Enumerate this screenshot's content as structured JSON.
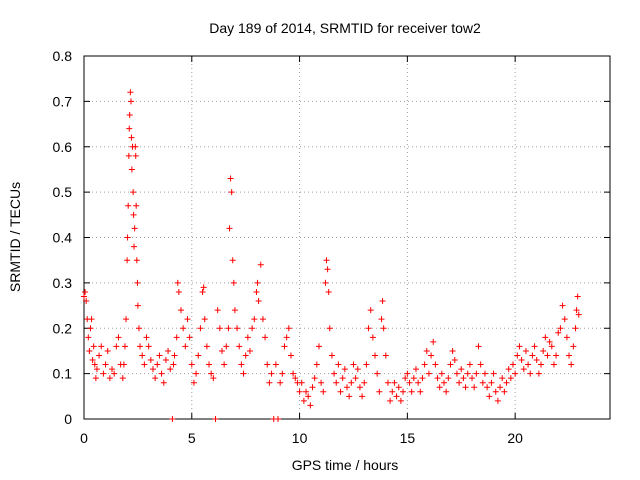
{
  "chart_data": {
    "type": "scatter",
    "title": "Day 189 of 2014, SRMTID for receiver tow2",
    "xlabel": "GPS time / hours",
    "ylabel": "SRMTID / TECUs",
    "xlim": [
      0,
      24.4
    ],
    "ylim": [
      0,
      0.8
    ],
    "xticks": [
      0,
      5,
      10,
      15,
      20
    ],
    "yticks": [
      0,
      0.1,
      0.2,
      0.3,
      0.4,
      0.5,
      0.6,
      0.7,
      0.8
    ],
    "xtick_labels": [
      "0",
      "5",
      "10",
      "15",
      "20"
    ],
    "ytick_labels": [
      "0",
      "0.1",
      "0.2",
      "0.3",
      "0.4",
      "0.5",
      "0.6",
      "0.7",
      "0.8"
    ],
    "grid": true,
    "marker": "+",
    "color": "#ff0000",
    "series": [
      {
        "name": "SRMTID",
        "points": [
          [
            0.0,
            0.27
          ],
          [
            0.05,
            0.28
          ],
          [
            0.1,
            0.26
          ],
          [
            0.15,
            0.22
          ],
          [
            0.2,
            0.18
          ],
          [
            0.25,
            0.15
          ],
          [
            0.3,
            0.2
          ],
          [
            0.35,
            0.22
          ],
          [
            0.4,
            0.13
          ],
          [
            0.45,
            0.16
          ],
          [
            0.5,
            0.12
          ],
          [
            0.55,
            0.09
          ],
          [
            0.6,
            0.11
          ],
          [
            0.7,
            0.14
          ],
          [
            0.8,
            0.16
          ],
          [
            0.9,
            0.1
          ],
          [
            1.0,
            0.12
          ],
          [
            1.1,
            0.15
          ],
          [
            1.2,
            0.09
          ],
          [
            1.3,
            0.11
          ],
          [
            1.4,
            0.1
          ],
          [
            1.5,
            0.16
          ],
          [
            1.6,
            0.18
          ],
          [
            1.7,
            0.12
          ],
          [
            1.8,
            0.09
          ],
          [
            1.85,
            0.12
          ],
          [
            1.9,
            0.16
          ],
          [
            1.95,
            0.22
          ],
          [
            2.0,
            0.35
          ],
          [
            2.02,
            0.4
          ],
          [
            2.05,
            0.47
          ],
          [
            2.08,
            0.58
          ],
          [
            2.1,
            0.64
          ],
          [
            2.12,
            0.67
          ],
          [
            2.15,
            0.72
          ],
          [
            2.18,
            0.7
          ],
          [
            2.2,
            0.62
          ],
          [
            2.22,
            0.55
          ],
          [
            2.25,
            0.6
          ],
          [
            2.28,
            0.5
          ],
          [
            2.3,
            0.45
          ],
          [
            2.32,
            0.38
          ],
          [
            2.35,
            0.42
          ],
          [
            2.38,
            0.6
          ],
          [
            2.4,
            0.58
          ],
          [
            2.42,
            0.47
          ],
          [
            2.45,
            0.35
          ],
          [
            2.48,
            0.3
          ],
          [
            2.5,
            0.25
          ],
          [
            2.55,
            0.2
          ],
          [
            2.6,
            0.16
          ],
          [
            2.7,
            0.14
          ],
          [
            2.8,
            0.12
          ],
          [
            2.9,
            0.18
          ],
          [
            3.0,
            0.16
          ],
          [
            3.1,
            0.13
          ],
          [
            3.2,
            0.11
          ],
          [
            3.3,
            0.09
          ],
          [
            3.4,
            0.12
          ],
          [
            3.5,
            0.14
          ],
          [
            3.6,
            0.1
          ],
          [
            3.7,
            0.08
          ],
          [
            3.8,
            0.13
          ],
          [
            3.9,
            0.15
          ],
          [
            4.0,
            0.11
          ],
          [
            4.1,
            0.0
          ],
          [
            4.15,
            0.12
          ],
          [
            4.2,
            0.14
          ],
          [
            4.3,
            0.18
          ],
          [
            4.35,
            0.3
          ],
          [
            4.4,
            0.28
          ],
          [
            4.5,
            0.24
          ],
          [
            4.6,
            0.2
          ],
          [
            4.7,
            0.16
          ],
          [
            4.8,
            0.22
          ],
          [
            4.9,
            0.18
          ],
          [
            5.0,
            0.12
          ],
          [
            5.1,
            0.08
          ],
          [
            5.2,
            0.1
          ],
          [
            5.3,
            0.14
          ],
          [
            5.4,
            0.2
          ],
          [
            5.5,
            0.28
          ],
          [
            5.55,
            0.29
          ],
          [
            5.6,
            0.22
          ],
          [
            5.7,
            0.16
          ],
          [
            5.8,
            0.12
          ],
          [
            5.9,
            0.1
          ],
          [
            6.0,
            0.09
          ],
          [
            6.1,
            0.0
          ],
          [
            6.2,
            0.24
          ],
          [
            6.3,
            0.2
          ],
          [
            6.4,
            0.15
          ],
          [
            6.5,
            0.12
          ],
          [
            6.6,
            0.16
          ],
          [
            6.7,
            0.2
          ],
          [
            6.75,
            0.42
          ],
          [
            6.8,
            0.53
          ],
          [
            6.85,
            0.5
          ],
          [
            6.9,
            0.35
          ],
          [
            6.95,
            0.3
          ],
          [
            7.0,
            0.24
          ],
          [
            7.1,
            0.2
          ],
          [
            7.2,
            0.16
          ],
          [
            7.3,
            0.12
          ],
          [
            7.4,
            0.1
          ],
          [
            7.5,
            0.14
          ],
          [
            7.6,
            0.18
          ],
          [
            7.7,
            0.15
          ],
          [
            7.8,
            0.2
          ],
          [
            7.9,
            0.22
          ],
          [
            8.0,
            0.28
          ],
          [
            8.05,
            0.3
          ],
          [
            8.1,
            0.26
          ],
          [
            8.2,
            0.34
          ],
          [
            8.3,
            0.22
          ],
          [
            8.4,
            0.18
          ],
          [
            8.5,
            0.12
          ],
          [
            8.6,
            0.08
          ],
          [
            8.7,
            0.1
          ],
          [
            8.8,
            0.0
          ],
          [
            8.9,
            0.12
          ],
          [
            9.0,
            0.0
          ],
          [
            9.1,
            0.08
          ],
          [
            9.2,
            0.1
          ],
          [
            9.3,
            0.16
          ],
          [
            9.4,
            0.18
          ],
          [
            9.5,
            0.2
          ],
          [
            9.6,
            0.14
          ],
          [
            9.7,
            0.1
          ],
          [
            9.8,
            0.09
          ],
          [
            9.9,
            0.08
          ],
          [
            10.0,
            0.06
          ],
          [
            10.1,
            0.08
          ],
          [
            10.2,
            0.04
          ],
          [
            10.3,
            0.06
          ],
          [
            10.4,
            0.05
          ],
          [
            10.5,
            0.03
          ],
          [
            10.6,
            0.07
          ],
          [
            10.7,
            0.09
          ],
          [
            10.8,
            0.12
          ],
          [
            10.9,
            0.16
          ],
          [
            11.0,
            0.08
          ],
          [
            11.1,
            0.06
          ],
          [
            11.2,
            0.3
          ],
          [
            11.25,
            0.35
          ],
          [
            11.3,
            0.33
          ],
          [
            11.35,
            0.28
          ],
          [
            11.4,
            0.2
          ],
          [
            11.5,
            0.14
          ],
          [
            11.6,
            0.1
          ],
          [
            11.7,
            0.08
          ],
          [
            11.8,
            0.12
          ],
          [
            11.9,
            0.06
          ],
          [
            12.0,
            0.09
          ],
          [
            12.1,
            0.11
          ],
          [
            12.2,
            0.07
          ],
          [
            12.3,
            0.05
          ],
          [
            12.4,
            0.08
          ],
          [
            12.5,
            0.12
          ],
          [
            12.6,
            0.09
          ],
          [
            12.7,
            0.11
          ],
          [
            12.8,
            0.07
          ],
          [
            12.9,
            0.05
          ],
          [
            13.0,
            0.08
          ],
          [
            13.1,
            0.12
          ],
          [
            13.2,
            0.2
          ],
          [
            13.3,
            0.24
          ],
          [
            13.4,
            0.18
          ],
          [
            13.5,
            0.14
          ],
          [
            13.6,
            0.1
          ],
          [
            13.7,
            0.06
          ],
          [
            13.8,
            0.22
          ],
          [
            13.85,
            0.26
          ],
          [
            13.9,
            0.2
          ],
          [
            14.0,
            0.14
          ],
          [
            14.1,
            0.08
          ],
          [
            14.2,
            0.04
          ],
          [
            14.3,
            0.06
          ],
          [
            14.4,
            0.08
          ],
          [
            14.5,
            0.05
          ],
          [
            14.6,
            0.07
          ],
          [
            14.7,
            0.04
          ],
          [
            14.8,
            0.06
          ],
          [
            14.9,
            0.09
          ],
          [
            15.0,
            0.1
          ],
          [
            15.1,
            0.08
          ],
          [
            15.2,
            0.06
          ],
          [
            15.3,
            0.09
          ],
          [
            15.4,
            0.11
          ],
          [
            15.5,
            0.08
          ],
          [
            15.6,
            0.06
          ],
          [
            15.7,
            0.09
          ],
          [
            15.8,
            0.12
          ],
          [
            15.9,
            0.15
          ],
          [
            16.0,
            0.1
          ],
          [
            16.1,
            0.14
          ],
          [
            16.2,
            0.17
          ],
          [
            16.3,
            0.12
          ],
          [
            16.4,
            0.09
          ],
          [
            16.5,
            0.07
          ],
          [
            16.6,
            0.1
          ],
          [
            16.7,
            0.08
          ],
          [
            16.8,
            0.06
          ],
          [
            16.9,
            0.09
          ],
          [
            17.0,
            0.12
          ],
          [
            17.1,
            0.15
          ],
          [
            17.2,
            0.13
          ],
          [
            17.3,
            0.1
          ],
          [
            17.4,
            0.08
          ],
          [
            17.5,
            0.11
          ],
          [
            17.6,
            0.09
          ],
          [
            17.7,
            0.07
          ],
          [
            17.8,
            0.1
          ],
          [
            17.9,
            0.12
          ],
          [
            18.0,
            0.09
          ],
          [
            18.1,
            0.07
          ],
          [
            18.2,
            0.1
          ],
          [
            18.3,
            0.16
          ],
          [
            18.4,
            0.12
          ],
          [
            18.5,
            0.08
          ],
          [
            18.6,
            0.1
          ],
          [
            18.7,
            0.07
          ],
          [
            18.8,
            0.05
          ],
          [
            18.9,
            0.08
          ],
          [
            19.0,
            0.1
          ],
          [
            19.1,
            0.06
          ],
          [
            19.2,
            0.04
          ],
          [
            19.3,
            0.07
          ],
          [
            19.4,
            0.09
          ],
          [
            19.5,
            0.06
          ],
          [
            19.6,
            0.08
          ],
          [
            19.7,
            0.11
          ],
          [
            19.8,
            0.09
          ],
          [
            19.9,
            0.12
          ],
          [
            20.0,
            0.1
          ],
          [
            20.1,
            0.14
          ],
          [
            20.2,
            0.16
          ],
          [
            20.3,
            0.13
          ],
          [
            20.4,
            0.11
          ],
          [
            20.5,
            0.15
          ],
          [
            20.6,
            0.12
          ],
          [
            20.7,
            0.1
          ],
          [
            20.8,
            0.14
          ],
          [
            20.9,
            0.16
          ],
          [
            21.0,
            0.13
          ],
          [
            21.1,
            0.1
          ],
          [
            21.2,
            0.12
          ],
          [
            21.3,
            0.15
          ],
          [
            21.4,
            0.18
          ],
          [
            21.5,
            0.14
          ],
          [
            21.6,
            0.17
          ],
          [
            21.7,
            0.16
          ],
          [
            21.8,
            0.12
          ],
          [
            21.9,
            0.14
          ],
          [
            22.0,
            0.19
          ],
          [
            22.1,
            0.2
          ],
          [
            22.2,
            0.25
          ],
          [
            22.3,
            0.22
          ],
          [
            22.4,
            0.18
          ],
          [
            22.5,
            0.14
          ],
          [
            22.6,
            0.12
          ],
          [
            22.7,
            0.16
          ],
          [
            22.8,
            0.2
          ],
          [
            22.85,
            0.24
          ],
          [
            22.9,
            0.27
          ],
          [
            22.95,
            0.23
          ]
        ]
      }
    ]
  }
}
